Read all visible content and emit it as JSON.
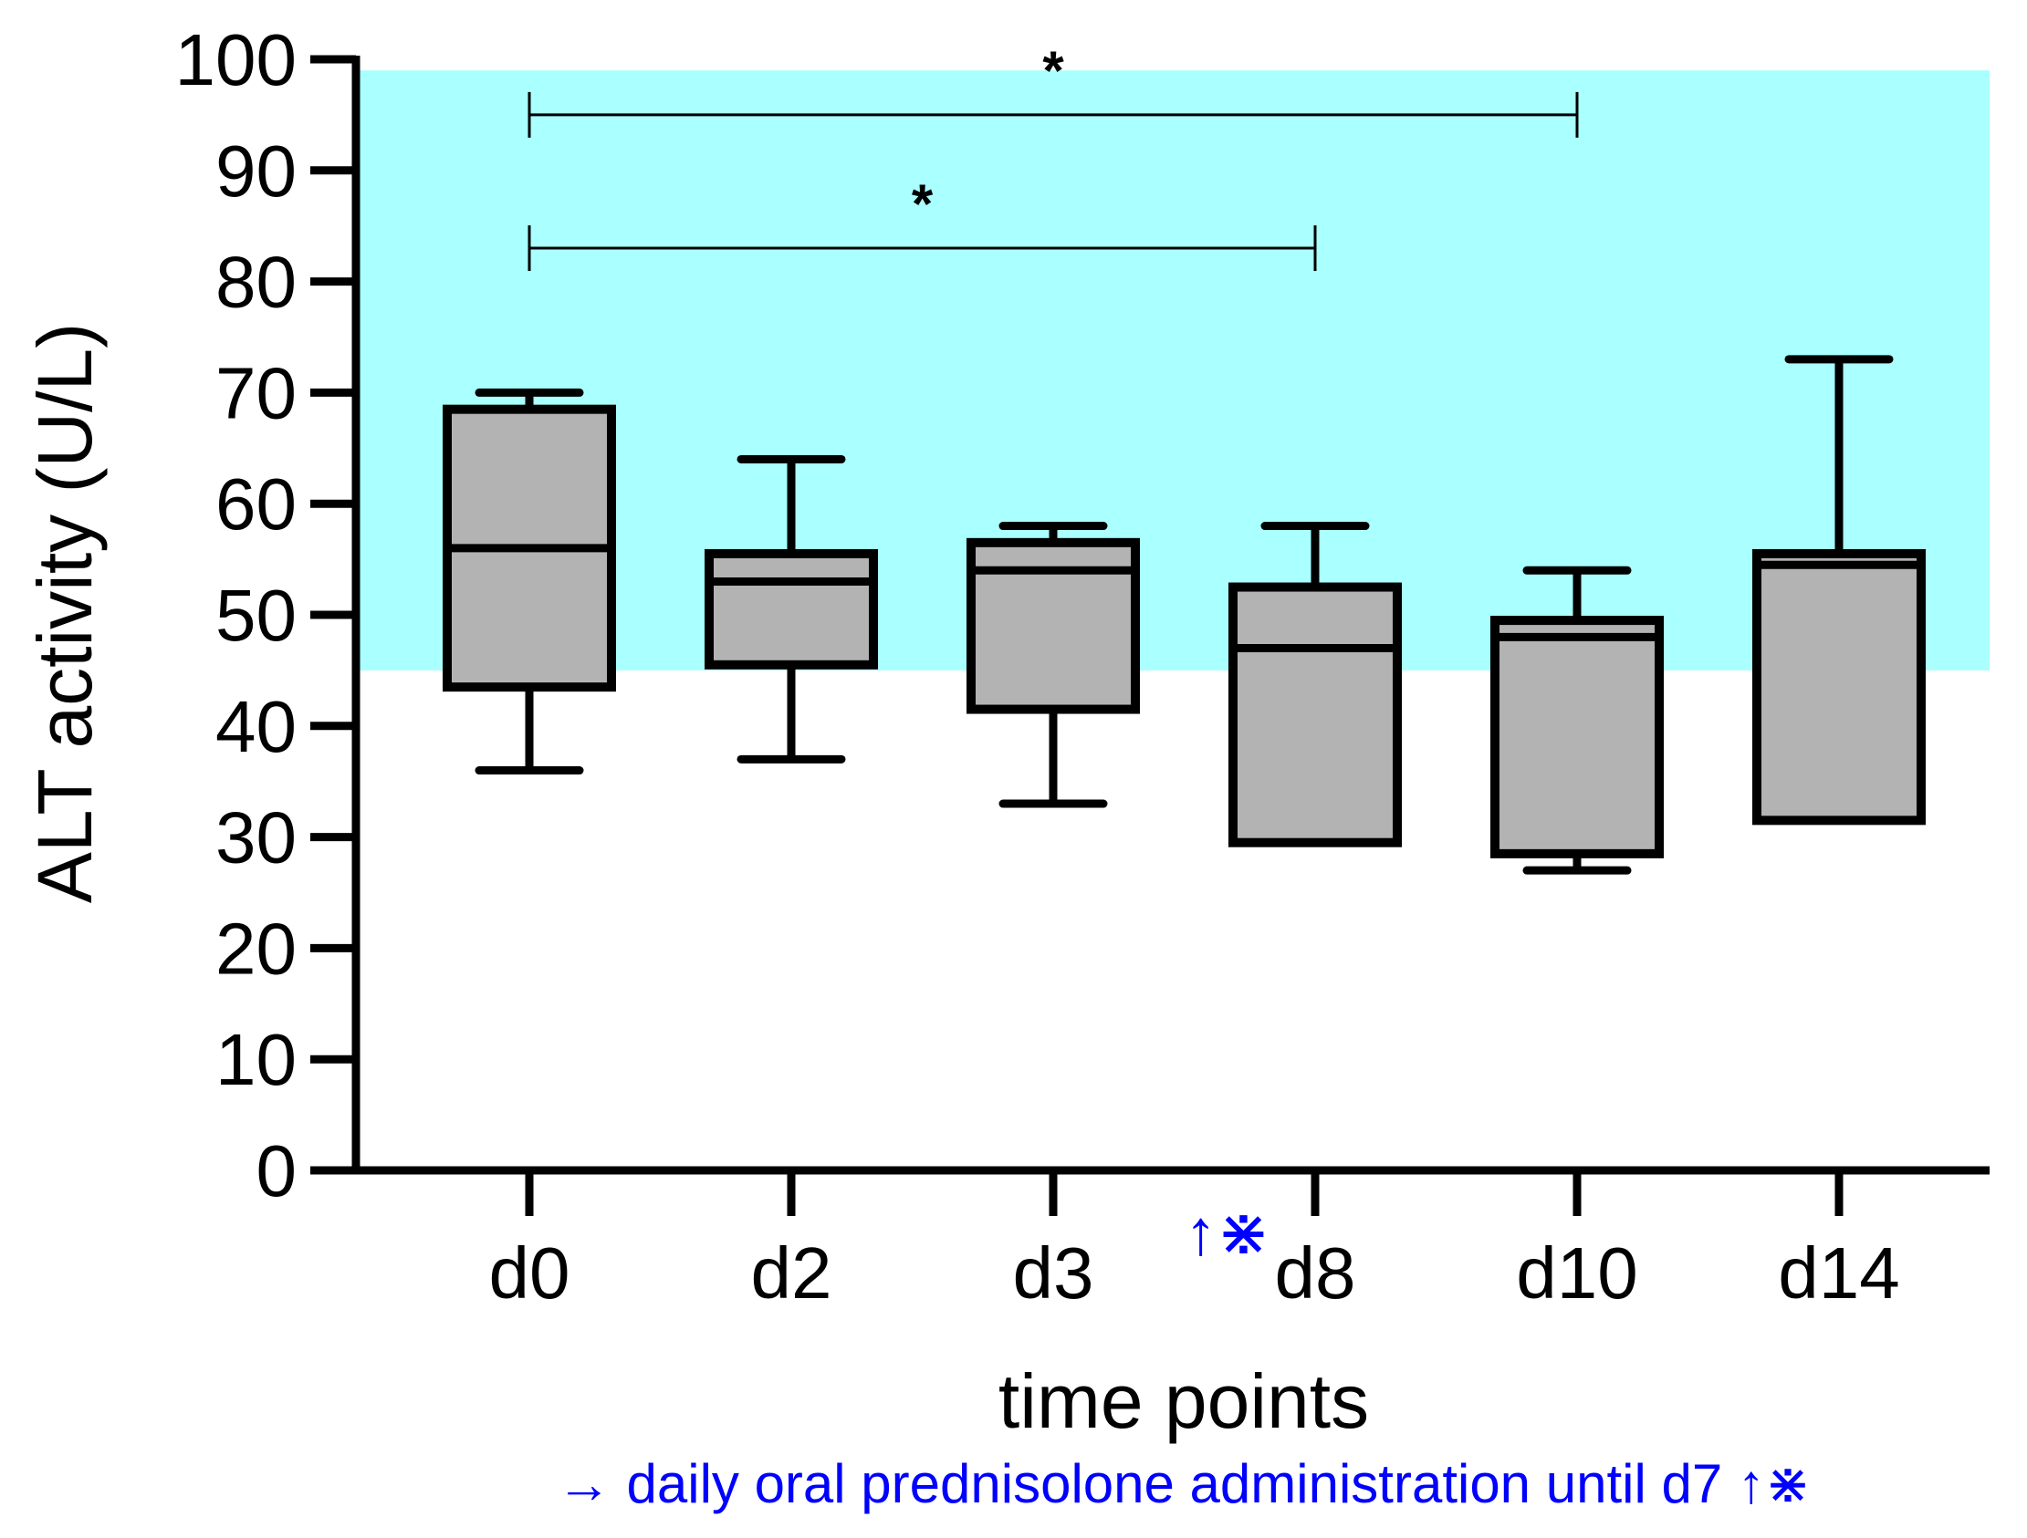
{
  "chart_data": {
    "type": "box",
    "title": "",
    "xlabel": "time points",
    "ylabel": "ALT activity (U/L)",
    "ylim": [
      0,
      100
    ],
    "yticks": [
      0,
      10,
      20,
      30,
      40,
      50,
      60,
      70,
      80,
      90,
      100
    ],
    "categories": [
      "d0",
      "d2",
      "d3",
      "d8",
      "d10",
      "d14"
    ],
    "boxes": [
      {
        "label": "d0",
        "min": 36,
        "q1": 43.5,
        "median": 56,
        "q3": 68.5,
        "max": 70
      },
      {
        "label": "d2",
        "min": 37,
        "q1": 45.5,
        "median": 53,
        "q3": 55.5,
        "max": 64
      },
      {
        "label": "d3",
        "min": 33,
        "q1": 41.5,
        "median": 54,
        "q3": 56.5,
        "max": 58
      },
      {
        "label": "d8",
        "min": 29.5,
        "q1": 29.5,
        "median": 47,
        "q3": 52.5,
        "max": 58
      },
      {
        "label": "d10",
        "min": 27,
        "q1": 28.5,
        "median": 48,
        "q3": 49.5,
        "max": 54
      },
      {
        "label": "d14",
        "min": 31.5,
        "q1": 31.5,
        "median": 54.5,
        "q3": 55.5,
        "max": 73
      }
    ],
    "reference_range": {
      "low": 45,
      "high": 99,
      "color": "#aaffff"
    },
    "significance": [
      {
        "from": "d0",
        "to": "d10",
        "y": 95,
        "label": "*"
      },
      {
        "from": "d0",
        "to": "d8",
        "y": 83,
        "label": "*"
      }
    ],
    "treatment_marker": {
      "after": "d3",
      "symbol": "↑⋇",
      "color": "#0000ff"
    },
    "note": {
      "text": "→ daily oral prednisolone administration until d7 ↑⋇",
      "color": "#0000ff"
    },
    "colors": {
      "box_fill": "#b3b3b3",
      "stroke": "#000000"
    }
  }
}
